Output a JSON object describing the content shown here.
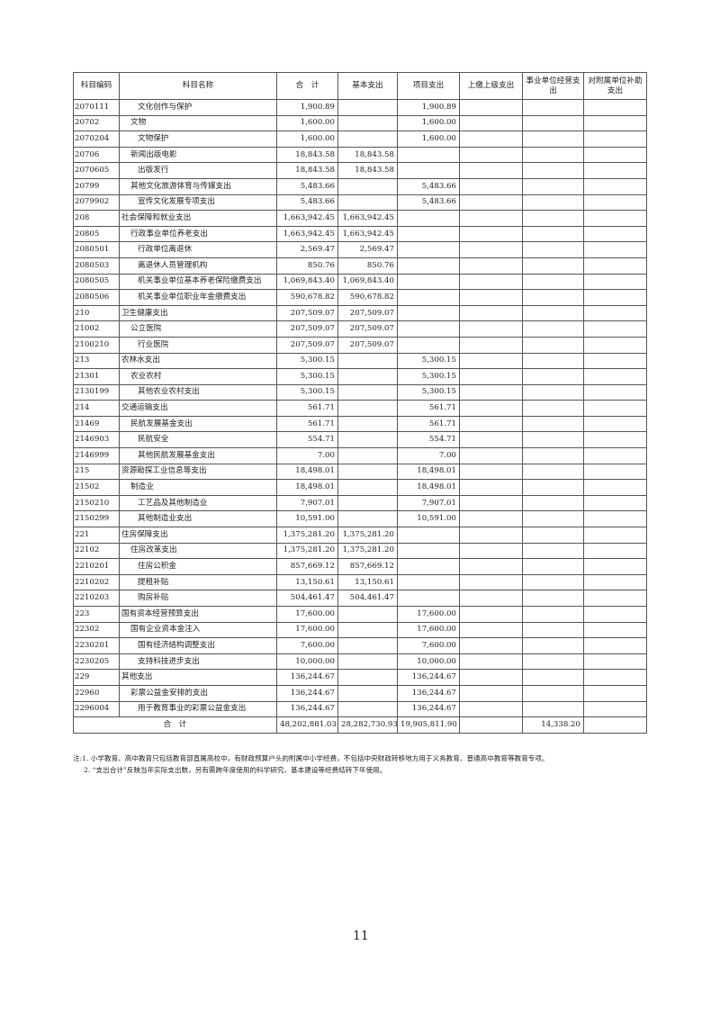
{
  "headers": [
    "科目编码",
    "科目名称",
    "合　计",
    "基本支出",
    "项目支出",
    "上缴上级支出",
    "事业单位经营支出",
    "对附属单位补助支出"
  ],
  "rows": [
    [
      "2070111",
      "文化创作与保护",
      "1,900.89",
      "",
      "1,900.89",
      "",
      "",
      ""
    ],
    [
      "20702",
      "文物",
      "1,600.00",
      "",
      "1,600.00",
      "",
      "",
      ""
    ],
    [
      "2070204",
      "文物保护",
      "1,600.00",
      "",
      "1,600.00",
      "",
      "",
      ""
    ],
    [
      "20706",
      "新闻出版电影",
      "18,843.58",
      "18,843.58",
      "",
      "",
      "",
      ""
    ],
    [
      "2070605",
      "出版发行",
      "18,843.58",
      "18,843.58",
      "",
      "",
      "",
      ""
    ],
    [
      "20799",
      "其他文化旅游体育与传媒支出",
      "5,483.66",
      "",
      "5,483.66",
      "",
      "",
      ""
    ],
    [
      "2079902",
      "宣传文化发展专项支出",
      "5,483.66",
      "",
      "5,483.66",
      "",
      "",
      ""
    ],
    [
      "208",
      "社会保障和就业支出",
      "1,663,942.45",
      "1,663,942.45",
      "",
      "",
      "",
      ""
    ],
    [
      "20805",
      "行政事业单位养老支出",
      "1,663,942.45",
      "1,663,942.45",
      "",
      "",
      "",
      ""
    ],
    [
      "2080501",
      "行政单位离退休",
      "2,569.47",
      "2,569.47",
      "",
      "",
      "",
      ""
    ],
    [
      "2080503",
      "离退休人员管理机构",
      "850.76",
      "850.76",
      "",
      "",
      "",
      ""
    ],
    [
      "2080505",
      "机关事业单位基本养老保险缴费支出",
      "1,069,843.40",
      "1,069,843.40",
      "",
      "",
      "",
      ""
    ],
    [
      "2080506",
      "机关事业单位职业年金缴费支出",
      "590,678.82",
      "590,678.82",
      "",
      "",
      "",
      ""
    ],
    [
      "210",
      "卫生健康支出",
      "207,509.07",
      "207,509.07",
      "",
      "",
      "",
      ""
    ],
    [
      "21002",
      "公立医院",
      "207,509.07",
      "207,509.07",
      "",
      "",
      "",
      ""
    ],
    [
      "2100210",
      "行业医院",
      "207,509.07",
      "207,509.07",
      "",
      "",
      "",
      ""
    ],
    [
      "213",
      "农林水支出",
      "5,300.15",
      "",
      "5,300.15",
      "",
      "",
      ""
    ],
    [
      "21301",
      "农业农村",
      "5,300.15",
      "",
      "5,300.15",
      "",
      "",
      ""
    ],
    [
      "2130199",
      "其他农业农村支出",
      "5,300.15",
      "",
      "5,300.15",
      "",
      "",
      ""
    ],
    [
      "214",
      "交通运输支出",
      "561.71",
      "",
      "561.71",
      "",
      "",
      ""
    ],
    [
      "21469",
      "民航发展基金支出",
      "561.71",
      "",
      "561.71",
      "",
      "",
      ""
    ],
    [
      "2146903",
      "民航安全",
      "554.71",
      "",
      "554.71",
      "",
      "",
      ""
    ],
    [
      "2146999",
      "其他民航发展基金支出",
      "7.00",
      "",
      "7.00",
      "",
      "",
      ""
    ],
    [
      "215",
      "资源勘探工业信息等支出",
      "18,498.01",
      "",
      "18,498.01",
      "",
      "",
      ""
    ],
    [
      "21502",
      "制造业",
      "18,498.01",
      "",
      "18,498.01",
      "",
      "",
      ""
    ],
    [
      "2150210",
      "工艺品及其他制造业",
      "7,907.01",
      "",
      "7,907.01",
      "",
      "",
      ""
    ],
    [
      "2150299",
      "其他制造业支出",
      "10,591.00",
      "",
      "10,591.00",
      "",
      "",
      ""
    ],
    [
      "221",
      "住房保障支出",
      "1,375,281.20",
      "1,375,281.20",
      "",
      "",
      "",
      ""
    ],
    [
      "22102",
      "住房改革支出",
      "1,375,281.20",
      "1,375,281.20",
      "",
      "",
      "",
      ""
    ],
    [
      "2210201",
      "住房公积金",
      "857,669.12",
      "857,669.12",
      "",
      "",
      "",
      ""
    ],
    [
      "2210202",
      "提租补贴",
      "13,150.61",
      "13,150.61",
      "",
      "",
      "",
      ""
    ],
    [
      "2210203",
      "购房补贴",
      "504,461.47",
      "504,461.47",
      "",
      "",
      "",
      ""
    ],
    [
      "223",
      "国有资本经营预算支出",
      "17,600.00",
      "",
      "17,600.00",
      "",
      "",
      ""
    ],
    [
      "22302",
      "国有企业资本金注入",
      "17,600.00",
      "",
      "17,600.00",
      "",
      "",
      ""
    ],
    [
      "2230201",
      "国有经济结构调整支出",
      "7,600.00",
      "",
      "7,600.00",
      "",
      "",
      ""
    ],
    [
      "2230205",
      "支持科技进步支出",
      "10,000.00",
      "",
      "10,000.00",
      "",
      "",
      ""
    ],
    [
      "229",
      "其他支出",
      "136,244.67",
      "",
      "136,244.67",
      "",
      "",
      ""
    ],
    [
      "22960",
      "彩票公益金安排的支出",
      "136,244.67",
      "",
      "136,244.67",
      "",
      "",
      ""
    ],
    [
      "2296004",
      "用于教育事业的彩票公益金支出",
      "136,244.67",
      "",
      "136,244.67",
      "",
      "",
      ""
    ]
  ],
  "total": {
    "label": "合　计",
    "values": [
      "48,202,881.03",
      "28,282,730.93",
      "19,905,811.90",
      "",
      "14,338.20",
      ""
    ]
  },
  "notes": [
    "注:1. 小学教育、高中教育只包括教育部直属高校中，有财政预算户头的附属中小学经费，不包括中央财政转移地方用于义务教育、普通高中教育等教育专项。",
    "2. “支出合计”反映当年实际支出数，另有需跨年度使用的科学研究、基本建设等经费结转下年使用。"
  ],
  "page_number": "11"
}
